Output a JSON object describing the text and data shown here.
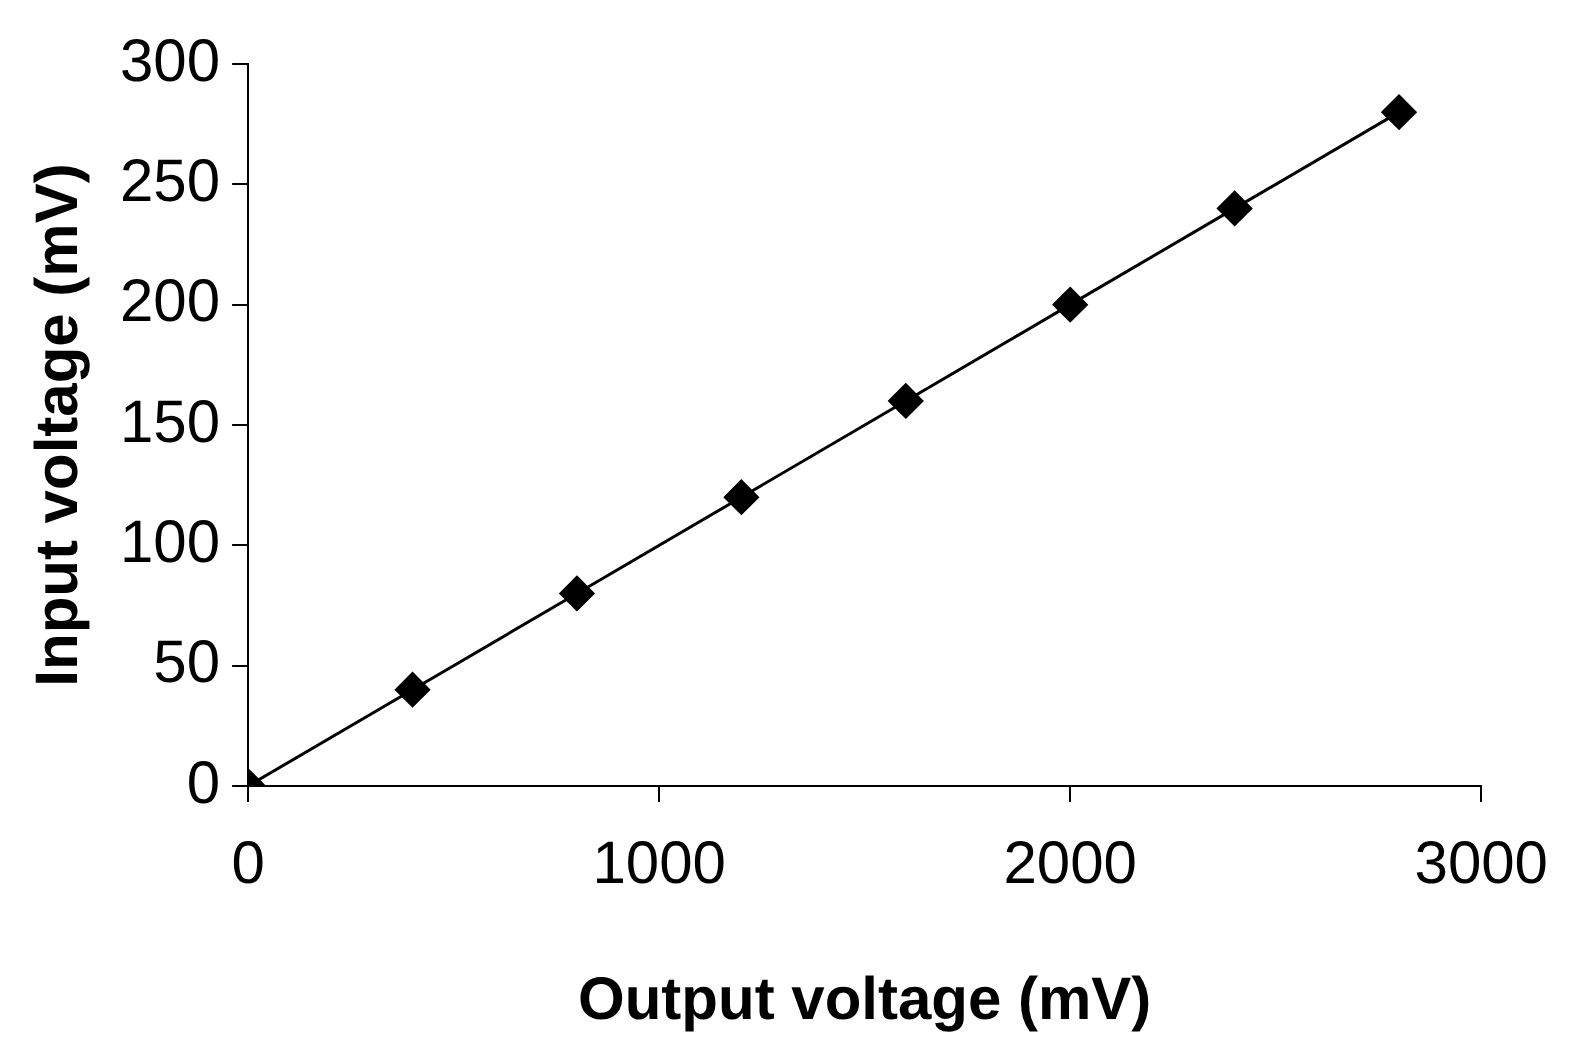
{
  "chart_data": {
    "type": "line",
    "xlabel": "Output voltage (mV)",
    "ylabel": "Input voltage (mV)",
    "x": [
      0,
      400,
      800,
      1200,
      1600,
      2000,
      2400,
      2800
    ],
    "series": [
      {
        "color": "#000000",
        "values": [
          0,
          40,
          80,
          120,
          160,
          200,
          240,
          280
        ]
      }
    ],
    "xlim": [
      0,
      3000
    ],
    "xticks": [
      0,
      1000,
      2000,
      3000
    ],
    "ylim": [
      0,
      300
    ],
    "yticks": [
      0,
      50,
      100,
      150,
      200,
      250,
      300
    ],
    "grid": false,
    "legend": false,
    "marker": "diamond",
    "line_style": "solid"
  }
}
